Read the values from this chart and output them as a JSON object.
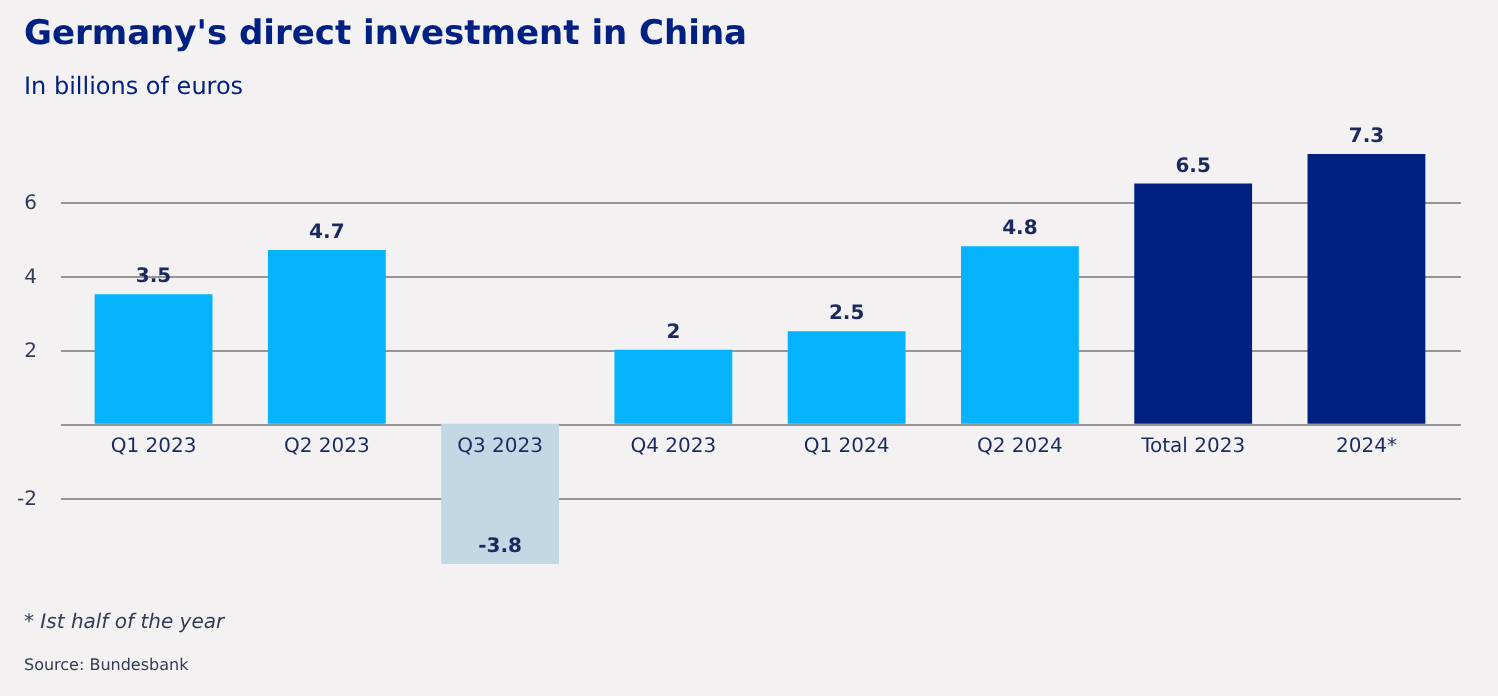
{
  "chart_data": {
    "type": "bar",
    "title": "Germany's direct investment in China",
    "subtitle": "In billions of euros",
    "categories": [
      "Q1 2023",
      "Q2 2023",
      "Q3 2023",
      "Q4 2023",
      "Q1 2024",
      "Q2 2024",
      "Total 2023",
      "2024*"
    ],
    "values": [
      3.5,
      4.7,
      -3.8,
      2,
      2.5,
      4.8,
      6.5,
      7.3
    ],
    "colors": [
      "#05b3fc",
      "#05b3fc",
      "#c3d7e4",
      "#05b3fc",
      "#05b3fc",
      "#05b3fc",
      "#002082",
      "#002082"
    ],
    "data_labels": true,
    "ylim": [
      -3.8,
      7.3
    ],
    "yticks": [
      -2,
      {
        "value": 0,
        "label": null
      },
      2,
      4,
      6
    ],
    "grid": "y",
    "annotations": [
      "* Ist half of the year",
      "Source: Bundesbank"
    ]
  }
}
